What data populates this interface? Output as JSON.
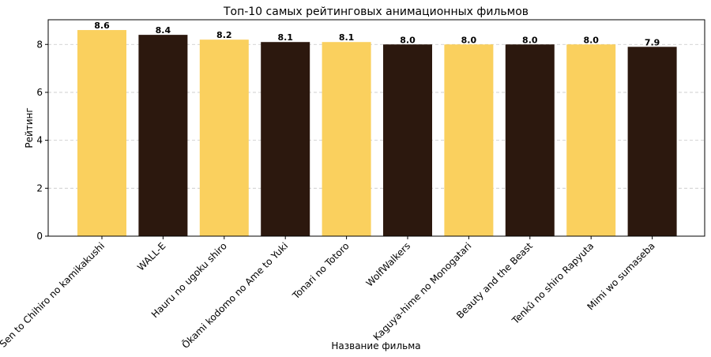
{
  "chart_data": {
    "type": "bar",
    "title": "Топ-10 самых рейтинговых анимационных фильмов",
    "xlabel": "Название фильма",
    "ylabel": "Рейтинг",
    "ylim": [
      0,
      9.03
    ],
    "yticks": [
      0,
      2,
      4,
      6,
      8
    ],
    "grid": "y-dashed",
    "categories": [
      "Sen to Chihiro no kamikakushi",
      "WALL-E",
      "Hauru no ugoku shiro",
      "Ōkami kodomo no Ame to Yuki",
      "Tonari no Totoro",
      "WolfWalkers",
      "Kaguya-hime no Monogatari",
      "Beauty and the Beast",
      "Tenkû no shiro Rapyuta",
      "Mimi wo sumaseba"
    ],
    "values": [
      8.6,
      8.4,
      8.2,
      8.1,
      8.1,
      8.0,
      8.0,
      8.0,
      8.0,
      7.9
    ],
    "value_labels": [
      "8.6",
      "8.4",
      "8.2",
      "8.1",
      "8.1",
      "8.0",
      "8.0",
      "8.0",
      "8.0",
      "7.9"
    ],
    "colors": [
      "#FAD05E",
      "#2C180E"
    ]
  }
}
